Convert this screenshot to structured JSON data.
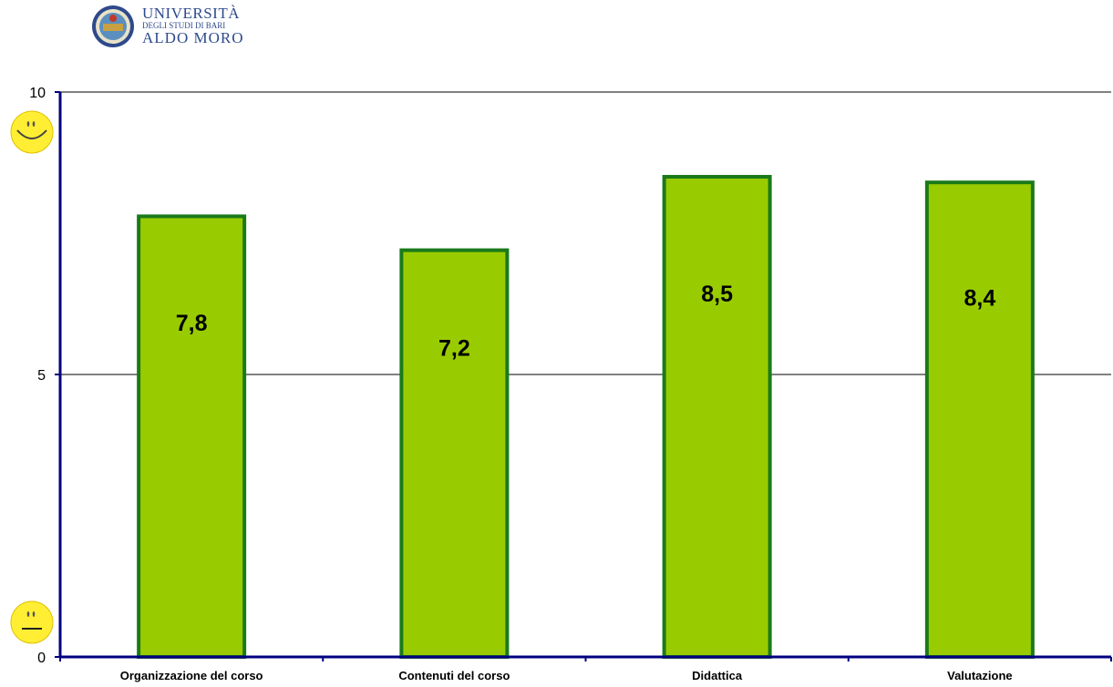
{
  "logo": {
    "line1": "UNIVERSITÀ",
    "line2": "DEGLI STUDI DI BARI",
    "line3": "ALDO MORO"
  },
  "chart_data": {
    "type": "bar",
    "categories": [
      "Organizzazione del corso",
      "Contenuti del corso",
      "Didattica",
      "Valutazione"
    ],
    "values": [
      7.8,
      7.2,
      8.5,
      8.4
    ],
    "value_labels": [
      "7,8",
      "7,2",
      "8,5",
      "8,4"
    ],
    "ylim": [
      0,
      10
    ],
    "yticks": [
      "0",
      "5",
      "10"
    ],
    "grid": true,
    "bar_color": "#99cc00",
    "bar_edge_color": "#1a7a1a",
    "axis_color": "#000080",
    "icons": [
      "smiley-happy-icon",
      "smiley-neutral-icon"
    ]
  }
}
